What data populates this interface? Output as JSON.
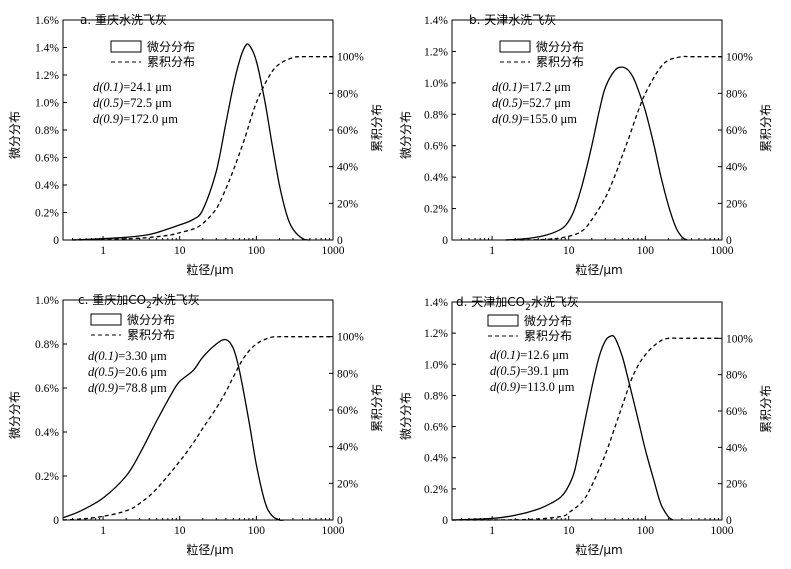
{
  "chart_data": [
    {
      "type": "line",
      "title": "a. 重庆水洗飞灰",
      "xlabel": "粒径/μm",
      "ylabel": "微分分布",
      "y2label": "累积分布",
      "xscale": "log",
      "xlim": [
        0.3,
        1000
      ],
      "x_ticks": [
        "1",
        "10",
        "100",
        "1000"
      ],
      "ylim": [
        0,
        1.6
      ],
      "y_ticks": [
        "0",
        "0.2%",
        "0.4%",
        "0.6%",
        "0.8%",
        "1.0%",
        "1.2%",
        "1.4%",
        "1.6%"
      ],
      "y2lim": [
        0,
        120
      ],
      "y2_ticks": [
        "0",
        "20%",
        "40%",
        "60%",
        "80%",
        "100%"
      ],
      "legend": [
        "微分分布",
        "累积分布"
      ],
      "stats": [
        {
          "label": "d(0.1)",
          "value": "=24.1 μm"
        },
        {
          "label": "d(0.5)",
          "value": "=72.5 μm"
        },
        {
          "label": "d(0.9)",
          "value": "=172.0 μm"
        }
      ],
      "series": [
        {
          "name": "微分分布",
          "style": "solid",
          "x": [
            0.4,
            1,
            2,
            4,
            7,
            10,
            15,
            20,
            30,
            40,
            50,
            60,
            70,
            80,
            100,
            130,
            160,
            200,
            250,
            300,
            400,
            500
          ],
          "y": [
            0.0,
            0.01,
            0.02,
            0.04,
            0.08,
            0.11,
            0.15,
            0.22,
            0.5,
            0.85,
            1.12,
            1.3,
            1.4,
            1.42,
            1.3,
            1.0,
            0.7,
            0.4,
            0.18,
            0.08,
            0.01,
            0.0
          ]
        },
        {
          "name": "累积分布",
          "style": "dashed",
          "x": [
            0.4,
            1,
            3,
            7,
            10,
            15,
            20,
            30,
            40,
            50,
            70,
            100,
            150,
            200,
            300,
            400,
            700,
            1000
          ],
          "y": [
            0,
            0.2,
            1,
            2.5,
            4,
            6,
            9,
            17,
            28,
            38,
            55,
            75,
            90,
            96,
            99.5,
            100,
            100,
            100
          ]
        }
      ]
    },
    {
      "type": "line",
      "title": "b. 天津水洗飞灰",
      "xlabel": "粒径/μm",
      "ylabel": "微分分布",
      "y2label": "累积分布",
      "xscale": "log",
      "xlim": [
        0.3,
        1000
      ],
      "x_ticks": [
        "1",
        "10",
        "100",
        "1000"
      ],
      "ylim": [
        0,
        1.4
      ],
      "y_ticks": [
        "0",
        "0.2%",
        "0.4%",
        "0.6%",
        "0.8%",
        "1.0%",
        "1.2%",
        "1.4%"
      ],
      "y2lim": [
        0,
        120
      ],
      "y2_ticks": [
        "0",
        "20%",
        "40%",
        "60%",
        "80%",
        "100%"
      ],
      "legend": [
        "微分分布",
        "累积分布"
      ],
      "stats": [
        {
          "label": "d(0.1)",
          "value": "=17.2 μm"
        },
        {
          "label": "d(0.5)",
          "value": "=52.7 μm"
        },
        {
          "label": "d(0.9)",
          "value": "=155.0 μm"
        }
      ],
      "series": [
        {
          "name": "微分分布",
          "style": "solid",
          "x": [
            1.5,
            3,
            5,
            8,
            10,
            12,
            15,
            20,
            25,
            30,
            40,
            50,
            60,
            70,
            80,
            100,
            130,
            160,
            200,
            250,
            300,
            350
          ],
          "y": [
            0.0,
            0.01,
            0.03,
            0.07,
            0.12,
            0.2,
            0.35,
            0.6,
            0.82,
            0.97,
            1.08,
            1.1,
            1.08,
            1.03,
            0.96,
            0.82,
            0.6,
            0.4,
            0.22,
            0.08,
            0.02,
            0.0
          ]
        },
        {
          "name": "累积分布",
          "style": "dashed",
          "x": [
            1.5,
            5,
            10,
            15,
            20,
            30,
            40,
            50,
            60,
            80,
            100,
            150,
            200,
            300,
            400,
            1000
          ],
          "y": [
            0,
            0.3,
            2,
            5,
            11,
            23,
            35,
            46,
            55,
            70,
            80,
            93,
            98,
            100,
            100,
            100
          ]
        }
      ]
    },
    {
      "type": "line",
      "title_main": "c. 重庆加CO",
      "title_sub": "2",
      "title_tail": "水洗飞灰",
      "xlabel": "粒径/μm",
      "ylabel": "微分分布",
      "y2label": "累积分布",
      "xscale": "log",
      "xlim": [
        0.3,
        1000
      ],
      "x_ticks": [
        "1",
        "10",
        "100",
        "1000"
      ],
      "ylim": [
        0,
        1.0
      ],
      "y_ticks": [
        "0",
        "0.2%",
        "0.4%",
        "0.6%",
        "0.8%",
        "1.0%"
      ],
      "y2lim": [
        0,
        120
      ],
      "y2_ticks": [
        "0",
        "20%",
        "40%",
        "60%",
        "80%",
        "100%"
      ],
      "legend": [
        "微分分布",
        "累积分布"
      ],
      "stats": [
        {
          "label": "d(0.1)",
          "value": "=3.30 μm"
        },
        {
          "label": "d(0.5)",
          "value": "=20.6 μm"
        },
        {
          "label": "d(0.9)",
          "value": "=78.8 μm"
        }
      ],
      "series": [
        {
          "name": "微分分布",
          "style": "solid",
          "x": [
            0.3,
            0.5,
            1,
            2,
            3,
            5,
            8,
            10,
            15,
            20,
            30,
            40,
            50,
            60,
            80,
            100,
            130,
            160,
            200,
            230
          ],
          "y": [
            0.01,
            0.04,
            0.1,
            0.2,
            0.3,
            0.45,
            0.58,
            0.63,
            0.68,
            0.74,
            0.8,
            0.82,
            0.78,
            0.68,
            0.45,
            0.25,
            0.08,
            0.02,
            0.0,
            0.0
          ]
        },
        {
          "name": "累积分布",
          "style": "dashed",
          "x": [
            0.3,
            0.5,
            1,
            2,
            3,
            5,
            10,
            15,
            20,
            30,
            40,
            50,
            70,
            100,
            150,
            200,
            300,
            1000
          ],
          "y": [
            0,
            0.5,
            2,
            5,
            9,
            17,
            32,
            42,
            50,
            61,
            70,
            78,
            89,
            96,
            99.5,
            100,
            100,
            100
          ]
        }
      ]
    },
    {
      "type": "line",
      "title_main": "d. 天津加CO",
      "title_sub": "2",
      "title_tail": "水洗飞灰",
      "xlabel": "粒径/μm",
      "ylabel": "微分分布",
      "y2label": "累积分布",
      "xscale": "log",
      "xlim": [
        0.3,
        1000
      ],
      "x_ticks": [
        "1",
        "10",
        "100",
        "1000"
      ],
      "ylim": [
        0,
        1.4
      ],
      "y_ticks": [
        "0",
        "0.2%",
        "0.4%",
        "0.6%",
        "0.8%",
        "1.0%",
        "1.2%",
        "1.4%"
      ],
      "y2lim": [
        0,
        120
      ],
      "y2_ticks": [
        "0",
        "20%",
        "40%",
        "60%",
        "80%",
        "100%"
      ],
      "legend": [
        "微分分布",
        "累积分布"
      ],
      "stats": [
        {
          "label": "d(0.1)",
          "value": "=12.6 μm"
        },
        {
          "label": "d(0.5)",
          "value": "=39.1 μm"
        },
        {
          "label": "d(0.9)",
          "value": "=113.0 μm"
        }
      ],
      "series": [
        {
          "name": "微分分布",
          "style": "solid",
          "x": [
            0.3,
            1,
            2,
            4,
            6,
            8,
            10,
            12,
            15,
            20,
            25,
            30,
            35,
            40,
            50,
            60,
            80,
            100,
            130,
            160,
            200,
            230
          ],
          "y": [
            0.0,
            0.01,
            0.03,
            0.07,
            0.11,
            0.15,
            0.22,
            0.32,
            0.55,
            0.85,
            1.05,
            1.15,
            1.18,
            1.17,
            1.05,
            0.9,
            0.65,
            0.45,
            0.25,
            0.1,
            0.02,
            0.0
          ]
        },
        {
          "name": "累积分布",
          "style": "dashed",
          "x": [
            0.3,
            3,
            8,
            10,
            15,
            20,
            30,
            40,
            50,
            70,
            100,
            150,
            200,
            300,
            1000
          ],
          "y": [
            0,
            0.3,
            2,
            4,
            10,
            19,
            36,
            51,
            63,
            80,
            91,
            98,
            100,
            100,
            100
          ]
        }
      ]
    }
  ]
}
